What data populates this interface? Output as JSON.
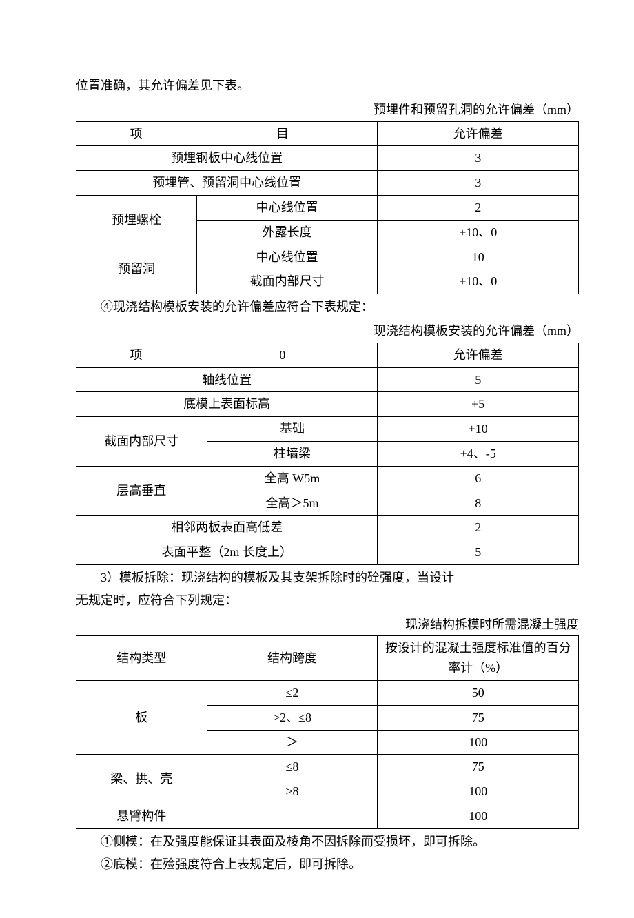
{
  "intro": "位置准确，其允许偏差见下表。",
  "table1": {
    "caption": "预埋件和预留孔洞的允许偏差（mm）",
    "hdr_l1": "项",
    "hdr_l2": "目",
    "hdr_r": "允许偏差",
    "rows": [
      {
        "span": true,
        "label": "预埋钢板中心线位置",
        "val": "3"
      },
      {
        "span": true,
        "label": "预埋管、预留洞中心线位置",
        "val": "3"
      },
      {
        "group": "预埋螺栓",
        "sub": "中心线位置",
        "val": "2"
      },
      {
        "sub": "外露长度",
        "val": "+10、0"
      },
      {
        "group": "预留洞",
        "sub": "中心线位置",
        "val": "10"
      },
      {
        "sub": "截面内部尺寸",
        "val": "+10、0"
      }
    ]
  },
  "mid1": "④现浇结构模板安装的允许偏差应符合下表规定：",
  "table2": {
    "caption": "现浇结构模板安装的允许偏差（mm）",
    "hdr_l1": "项",
    "hdr_l2": "0",
    "hdr_r": "允许偏差",
    "rows": [
      {
        "span": true,
        "label": "轴线位置",
        "val": "5"
      },
      {
        "span": true,
        "label": "底模上表面标高",
        "val": "+5"
      },
      {
        "group": "截面内部尺寸",
        "sub": "基础",
        "val": "+10"
      },
      {
        "sub": "柱墙梁",
        "val": "+4、-5"
      },
      {
        "group": "层高垂直",
        "sub": "全高 W5m",
        "val": "6"
      },
      {
        "sub": "全高＞5m",
        "val": "8"
      },
      {
        "span": true,
        "label": "相邻两板表面高低差",
        "val": "2"
      },
      {
        "span": true,
        "label": "表面平整（2m 长度上）",
        "val": "5"
      }
    ]
  },
  "mid2a": "　　3）模板拆除：现浇结构的模板及其支架拆除时的砼强度，当设计",
  "mid2b": "无规定时，应符合下列规定：",
  "table3": {
    "caption": "现浇结构拆模时所需混凝土强度",
    "hdr_a": "结构类型",
    "hdr_b": "结构跨度",
    "hdr_c": "按设计的混凝土强度标准值的百分率计（%）",
    "rows": [
      {
        "group": "板",
        "g_rows": 3,
        "b": "≤2",
        "c": "50"
      },
      {
        "b": ">2、≤8",
        "c": "75"
      },
      {
        "b": "＞",
        "c": "100"
      },
      {
        "group": "梁、拱、壳",
        "g_rows": 2,
        "b": "≤8",
        "c": "75"
      },
      {
        "b": ">8",
        "c": "100"
      },
      {
        "group": "悬臂构件",
        "g_rows": 1,
        "b": "——",
        "c": "100"
      }
    ]
  },
  "foot1": "　　①侧模：在及强度能保证其表面及棱角不因拆除而受损坏，即可拆除。",
  "foot2": "　　②底模：在殓强度符合上表规定后，即可拆除。"
}
